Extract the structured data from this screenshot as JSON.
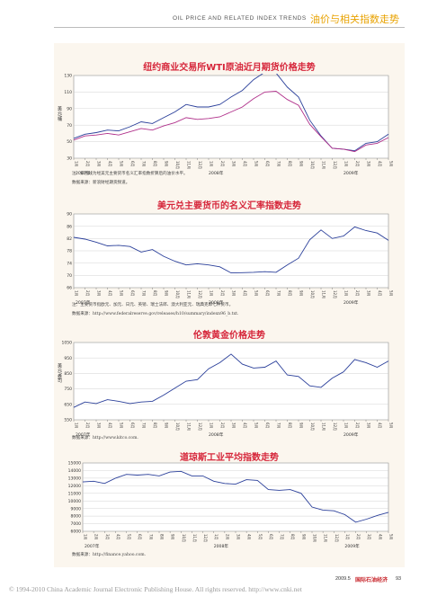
{
  "header": {
    "title_en": "OIL PRICE AND RELATED INDEX TRENDS",
    "title_cn": "油价与相关指数走势"
  },
  "months": [
    "1月",
    "2月",
    "3月",
    "4月",
    "5月",
    "6月",
    "7月",
    "8月",
    "9月",
    "10月",
    "11月",
    "12月",
    "1月",
    "2月",
    "3月",
    "4月",
    "5月",
    "6月",
    "7月",
    "8月",
    "9月",
    "10月",
    "11月",
    "12月",
    "1月",
    "2月",
    "3月",
    "4月",
    "5月"
  ],
  "years": [
    "2007年",
    "2008年",
    "2009年"
  ],
  "charts": {
    "wti": {
      "title": "纽约商业交易所WTI原油近月期货价格走势",
      "ylabel": "美元/桶",
      "yticks": [
        "130",
        "110",
        "90",
        "70",
        "50",
        "30"
      ],
      "note": "注：紫色线为经美元主要货币名义汇率指数折算后的油价水平。",
      "source": "数据来源：新浪财经期货频道。"
    },
    "usd": {
      "title": "美元兑主要货币的名义汇率指数走势",
      "yticks": [
        "90",
        "86",
        "82",
        "78",
        "74",
        "70",
        "66"
      ],
      "note": "注：主要货币指欧元、加元、日元、英镑、瑞士法郎、澳大利亚元、瑞典克郎七种货币。",
      "source": "数据来源：http://www.federalreserve.gov/releases/h10/summary/indexn96_b.txt."
    },
    "gold": {
      "title": "伦敦黄金价格走势",
      "ylabel": "美元/盎司",
      "yticks": [
        "1050",
        "950",
        "850",
        "750",
        "650",
        "550"
      ],
      "source": "数据来源：http://www.kitco.com."
    },
    "djia": {
      "title": "道琼斯工业平均指数走势",
      "yticks": [
        "15000",
        "14000",
        "13000",
        "12000",
        "11000",
        "10000",
        "9000",
        "8000",
        "7000",
        "6000"
      ],
      "source": "数据来源：http://finance.yahoo.com."
    }
  },
  "chart_data": [
    {
      "type": "line",
      "title": "纽约商业交易所WTI原油近月期货价格走势",
      "ylabel": "美元/桶",
      "ylim": [
        30,
        130
      ],
      "x": [
        "2007-01",
        "2007-02",
        "2007-03",
        "2007-04",
        "2007-05",
        "2007-06",
        "2007-07",
        "2007-08",
        "2007-09",
        "2007-10",
        "2007-11",
        "2007-12",
        "2008-01",
        "2008-02",
        "2008-03",
        "2008-04",
        "2008-05",
        "2008-06",
        "2008-07",
        "2008-08",
        "2008-09",
        "2008-10",
        "2008-11",
        "2008-12",
        "2009-01",
        "2009-02",
        "2009-03",
        "2009-04",
        "2009-05"
      ],
      "series": [
        {
          "values": [
            54,
            59,
            61,
            64,
            63,
            68,
            74,
            72,
            79,
            86,
            95,
            92,
            92,
            95,
            104,
            112,
            125,
            134,
            133,
            116,
            104,
            76,
            57,
            42,
            41,
            39,
            48,
            50,
            59
          ]
        },
        {
          "values": [
            52,
            57,
            58,
            60,
            58,
            62,
            66,
            64,
            69,
            73,
            79,
            77,
            78,
            80,
            86,
            92,
            102,
            110,
            111,
            101,
            94,
            71,
            56,
            42,
            41,
            38,
            46,
            48,
            55
          ]
        }
      ]
    },
    {
      "type": "line",
      "title": "美元兑主要货币的名义汇率指数走势",
      "ylim": [
        66,
        90
      ],
      "x": [
        "2007-01",
        "2007-02",
        "2007-03",
        "2007-04",
        "2007-05",
        "2007-06",
        "2007-07",
        "2007-08",
        "2007-09",
        "2007-10",
        "2007-11",
        "2007-12",
        "2008-01",
        "2008-02",
        "2008-03",
        "2008-04",
        "2008-05",
        "2008-06",
        "2008-07",
        "2008-08",
        "2008-09",
        "2008-10",
        "2008-11",
        "2008-12",
        "2009-01",
        "2009-02",
        "2009-03",
        "2009-04",
        "2009-05"
      ],
      "series": [
        {
          "values": [
            82.4,
            81.8,
            80.8,
            79.6,
            79.8,
            79.4,
            77.6,
            78.4,
            76.2,
            74.6,
            73.4,
            73.8,
            73.4,
            72.8,
            70.8,
            70.9,
            71.0,
            71.2,
            71.0,
            73.4,
            75.6,
            81.6,
            84.8,
            82.0,
            82.8,
            85.8,
            84.6,
            83.8,
            81.4
          ]
        }
      ]
    },
    {
      "type": "line",
      "title": "伦敦黄金价格走势",
      "ylabel": "美元/盎司",
      "ylim": [
        550,
        1050
      ],
      "x": [
        "2007-01",
        "2007-02",
        "2007-03",
        "2007-04",
        "2007-05",
        "2007-06",
        "2007-07",
        "2007-08",
        "2007-09",
        "2007-10",
        "2007-11",
        "2007-12",
        "2008-01",
        "2008-02",
        "2008-03",
        "2008-04",
        "2008-05",
        "2008-06",
        "2008-07",
        "2008-08",
        "2008-09",
        "2008-10",
        "2008-11",
        "2008-12",
        "2009-01",
        "2009-02",
        "2009-03",
        "2009-04",
        "2009-05"
      ],
      "series": [
        {
          "values": [
            630,
            665,
            655,
            680,
            670,
            655,
            665,
            670,
            710,
            755,
            800,
            810,
            880,
            920,
            975,
            910,
            885,
            890,
            930,
            840,
            830,
            770,
            760,
            820,
            860,
            940,
            920,
            890,
            930
          ]
        }
      ]
    },
    {
      "type": "line",
      "title": "道琼斯工业平均指数走势",
      "ylim": [
        6000,
        15000
      ],
      "x": [
        "2007-01",
        "2007-02",
        "2007-03",
        "2007-04",
        "2007-05",
        "2007-06",
        "2007-07",
        "2007-08",
        "2007-09",
        "2007-10",
        "2007-11",
        "2007-12",
        "2008-01",
        "2008-02",
        "2008-03",
        "2008-04",
        "2008-05",
        "2008-06",
        "2008-07",
        "2008-08",
        "2008-09",
        "2008-10",
        "2008-11",
        "2008-12",
        "2009-01",
        "2009-02",
        "2009-03",
        "2009-04",
        "2009-05"
      ],
      "series": [
        {
          "values": [
            12500,
            12600,
            12300,
            13000,
            13500,
            13400,
            13500,
            13300,
            13800,
            13900,
            13300,
            13300,
            12600,
            12300,
            12200,
            12800,
            12700,
            11500,
            11400,
            11500,
            11000,
            9200,
            8800,
            8700,
            8200,
            7200,
            7600,
            8100,
            8500
          ]
        }
      ]
    }
  ],
  "footer": {
    "issue": "2009.5",
    "magazine": "国际石油经济",
    "page": "93",
    "copyright": "© 1994-2010 China Academic Journal Electronic Publishing House. All rights reserved.    http://www.cnki.net"
  }
}
